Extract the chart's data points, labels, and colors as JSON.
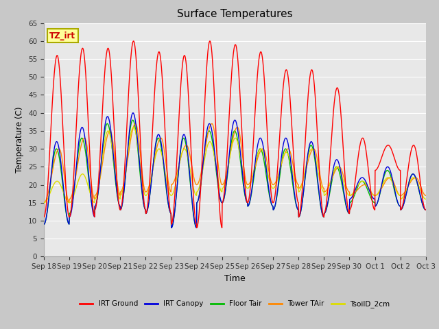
{
  "title": "Surface Temperatures",
  "xlabel": "Time",
  "ylabel": "Temperature (C)",
  "ylim": [
    0,
    65
  ],
  "yticks": [
    0,
    5,
    10,
    15,
    20,
    25,
    30,
    35,
    40,
    45,
    50,
    55,
    60,
    65
  ],
  "fig_bg_color": "#c8c8c8",
  "plot_bg_color": "#e8e8e8",
  "legend_labels": [
    "IRT Ground",
    "IRT Canopy",
    "Floor Tair",
    "Tower TAir",
    "TsoilD_2cm"
  ],
  "legend_colors": [
    "#ff0000",
    "#0000dd",
    "#00bb00",
    "#ff8800",
    "#dddd00"
  ],
  "annotation_text": "TZ_irt",
  "annotation_bg": "#ffff99",
  "annotation_border": "#aaaa00",
  "n_days": 15,
  "peaks_red": [
    56,
    58,
    58,
    60,
    57,
    56,
    60,
    59,
    57,
    52,
    52,
    47,
    33,
    31,
    31
  ],
  "mins_red": [
    11,
    11,
    13,
    13,
    12,
    9,
    8,
    15,
    15,
    15,
    11,
    12,
    13,
    24,
    13
  ],
  "peaks_blue": [
    32,
    36,
    39,
    40,
    34,
    34,
    37,
    38,
    33,
    33,
    32,
    27,
    22,
    25,
    23
  ],
  "mins_blue": [
    9,
    11,
    14,
    13,
    12,
    8,
    15,
    15,
    14,
    13,
    11,
    12,
    16,
    14,
    13
  ],
  "peaks_green": [
    30,
    33,
    37,
    38,
    33,
    33,
    35,
    35,
    30,
    30,
    31,
    25,
    21,
    24,
    23
  ],
  "mins_green": [
    9,
    12,
    14,
    13,
    12,
    8,
    15,
    15,
    14,
    13,
    11,
    12,
    15,
    14,
    13
  ],
  "peaks_orange": [
    30,
    33,
    35,
    37,
    33,
    31,
    37,
    36,
    30,
    30,
    30,
    25,
    20,
    22,
    22
  ],
  "mins_orange": [
    15,
    16,
    17,
    18,
    18,
    20,
    20,
    20,
    20,
    20,
    19,
    18,
    17,
    17,
    17
  ],
  "peaks_yellow": [
    21,
    23,
    35,
    36,
    30,
    30,
    32,
    33,
    30,
    29,
    30,
    25,
    21,
    22,
    22
  ],
  "mins_yellow": [
    15,
    15,
    16,
    17,
    17,
    17,
    18,
    19,
    19,
    19,
    18,
    17,
    17,
    17,
    16
  ],
  "tick_labels": [
    "Sep 18",
    "Sep 19",
    "Sep 20",
    "Sep 21",
    "Sep 22",
    "Sep 23",
    "Sep 24",
    "Sep 25",
    "Sep 26",
    "Sep 27",
    "Sep 28",
    "Sep 29",
    "Sep 30",
    "Oct 1",
    "Oct 2",
    "Oct 3"
  ]
}
